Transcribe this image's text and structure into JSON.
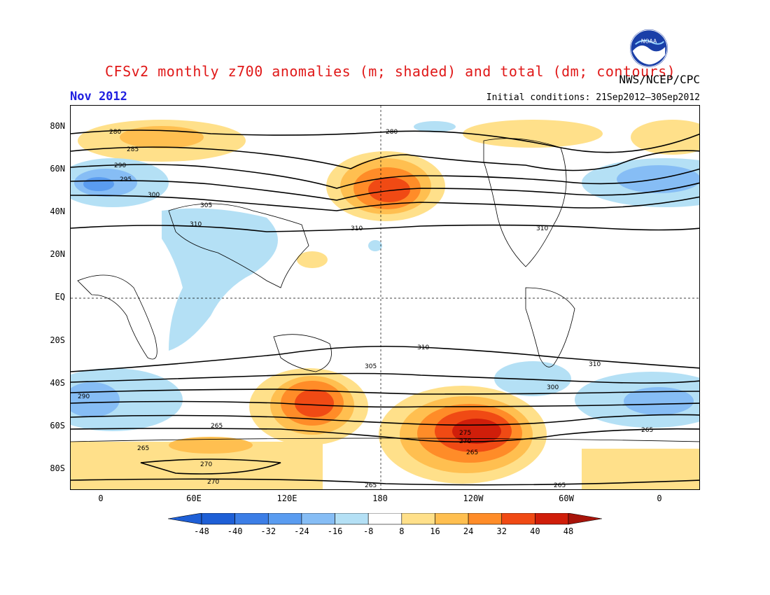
{
  "header": {
    "title": "CFSv2 monthly z700 anomalies (m; shaded) and total (dm; contours)",
    "agency": "NWS/NCEP/CPC",
    "month": "Nov 2012",
    "initial_conditions": "Initial conditions: 21Sep2012–30Sep2012"
  },
  "map": {
    "lat_ticks": [
      "80N",
      "60N",
      "40N",
      "20N",
      "EQ",
      "20S",
      "40S",
      "60S",
      "80S"
    ],
    "lon_ticks": [
      "0",
      "60E",
      "120E",
      "180",
      "120W",
      "60W",
      "0"
    ],
    "contour_labels": [
      "280",
      "285",
      "290",
      "295",
      "300",
      "305",
      "310",
      "265",
      "270",
      "275"
    ],
    "colorbar": {
      "labels": [
        "-48",
        "-40",
        "-32",
        "-24",
        "-16",
        "-8",
        "8",
        "16",
        "24",
        "32",
        "40",
        "48"
      ],
      "colors": [
        "#1e5fd6",
        "#3c7ee6",
        "#5a9cf0",
        "#86bdf5",
        "#b4e0f5",
        "#ffffff",
        "#ffe08a",
        "#ffbf50",
        "#ff8c28",
        "#f04a14",
        "#d01e0a"
      ]
    },
    "logo": "noaa-logo"
  }
}
